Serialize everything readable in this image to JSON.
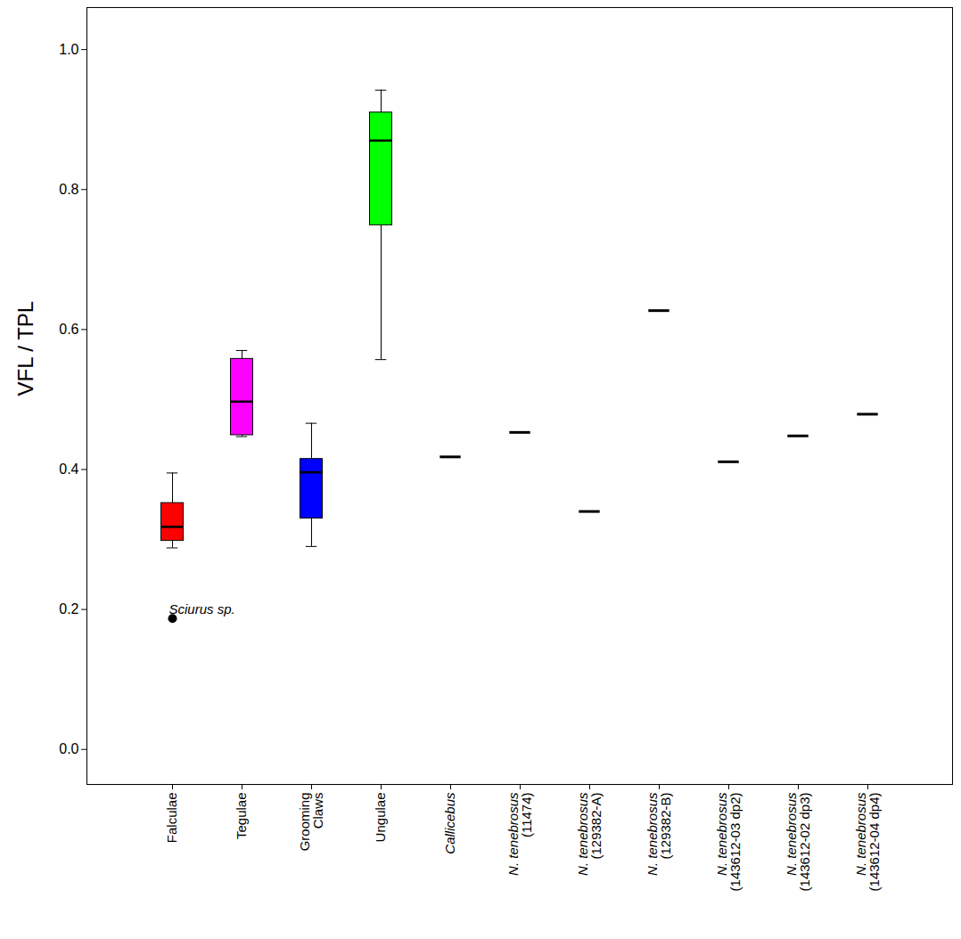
{
  "chart_data": {
    "type": "box",
    "y_label": "VFL / TPL",
    "categories": [
      "Falculae",
      "Tegulae",
      "Grooming Claws",
      "Ungulae",
      "Callicebus",
      "N. tenebrosus (11474)",
      "N. tenebrosus (129382-A)",
      "N. tenebrosus (129382-B)",
      "N. tenebrosus (143612-03 dp2)",
      "N. tenebrosus (143612-02 dp3)",
      "N. tenebrosus (143612-04 dp4)"
    ],
    "boxes": [
      {
        "category": "Falculae",
        "color": "#ff0000",
        "whisker_low": 0.288,
        "q1": 0.298,
        "median": 0.318,
        "q3": 0.352,
        "whisker_high": 0.395,
        "outliers": [
          0.187
        ]
      },
      {
        "category": "Tegulae",
        "color": "#ff00ff",
        "whisker_low": 0.447,
        "q1": 0.449,
        "median": 0.497,
        "q3": 0.558,
        "whisker_high": 0.57,
        "outliers": []
      },
      {
        "category": "Grooming Claws",
        "color": "#0000ff",
        "whisker_low": 0.29,
        "q1": 0.33,
        "median": 0.396,
        "q3": 0.415,
        "whisker_high": 0.466,
        "outliers": []
      },
      {
        "category": "Ungulae",
        "color": "#00ff00",
        "whisker_low": 0.557,
        "q1": 0.749,
        "median": 0.87,
        "q3": 0.91,
        "whisker_high": 0.942,
        "outliers": []
      }
    ],
    "points": [
      {
        "category": "Callicebus",
        "value": 0.418
      },
      {
        "category": "N. tenebrosus (11474)",
        "value": 0.453
      },
      {
        "category": "N. tenebrosus (129382-A)",
        "value": 0.34
      },
      {
        "category": "N. tenebrosus (129382-B)",
        "value": 0.627
      },
      {
        "category": "N. tenebrosus (143612-03 dp2)",
        "value": 0.411
      },
      {
        "category": "N. tenebrosus (143612-02 dp3)",
        "value": 0.448
      },
      {
        "category": "N. tenebrosus (143612-04 dp4)",
        "value": 0.479
      }
    ],
    "marker": "dash",
    "annotations": [
      {
        "text": "Sciurus sp.",
        "category": "Falculae",
        "y": 0.187
      }
    ],
    "ylim": [
      -0.05,
      1.06
    ],
    "yticks": [
      {
        "value": 0,
        "label": "0.0"
      },
      0.2,
      0.4,
      0.6,
      0.8,
      {
        "value": 1,
        "label": "1.0"
      }
    ],
    "grid": false
  }
}
